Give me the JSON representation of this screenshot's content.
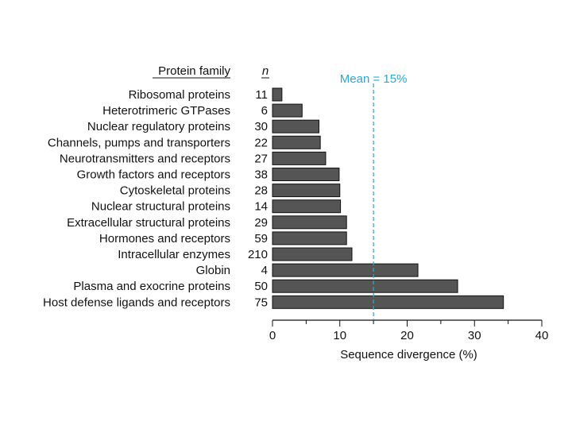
{
  "chart_data": {
    "type": "bar",
    "orientation": "horizontal",
    "column_header_family": "Protein family",
    "column_header_n": "n",
    "mean_label": "Mean = 15%",
    "mean_value": 15,
    "mean_color": "#29a8d9",
    "bar_color": "#555555",
    "xlabel": "Sequence divergence (%)",
    "xlim": [
      0,
      40
    ],
    "xticks": [
      0,
      10,
      20,
      30,
      40
    ],
    "categories": [
      "Ribosomal proteins",
      "Heterotrimeric GTPases",
      "Nuclear regulatory proteins",
      "Channels, pumps and transporters",
      "Neurotransmitters and receptors",
      "Growth factors and receptors",
      "Cytoskeletal proteins",
      "Nuclear structural proteins",
      "Extracellular structural proteins",
      "Hormones and receptors",
      "Intracellular enzymes",
      "Globin",
      "Plasma and exocrine proteins",
      "Host defense ligands and receptors"
    ],
    "n": [
      "11",
      "6",
      "30",
      "22",
      "27",
      "38",
      "28",
      "14",
      "29",
      "59",
      "210",
      "4",
      "50",
      "75"
    ],
    "values": [
      1.4,
      4.4,
      6.9,
      7.1,
      7.9,
      9.9,
      10.0,
      10.1,
      11.0,
      11.0,
      11.8,
      21.6,
      27.5,
      34.3
    ]
  }
}
